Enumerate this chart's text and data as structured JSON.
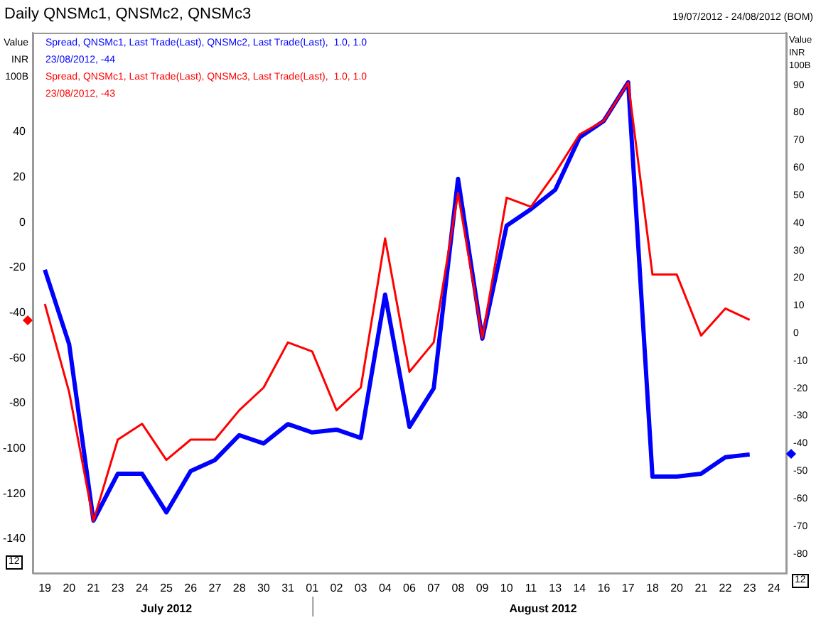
{
  "chart_data": {
    "type": "line",
    "title": "Daily QNSMc1, QNSMc2, QNSMc3",
    "subtitle": "19/07/2012 - 24/08/2012 (BOM)",
    "ylabel": "Value\nINR\n100B",
    "y2label": "Value\nINR\n100B",
    "categories": [
      "19",
      "20",
      "21",
      "23",
      "24",
      "25",
      "26",
      "27",
      "28",
      "30",
      "31",
      "01",
      "02",
      "03",
      "04",
      "06",
      "07",
      "08",
      "09",
      "10",
      "11",
      "13",
      "14",
      "16",
      "17",
      "18",
      "20",
      "21",
      "22",
      "23",
      "24"
    ],
    "series": [
      {
        "name": "Spread, QNSMc1, Last Trade(Last), QNSMc2, Last Trade(Last),  1.0, 1.0",
        "color": "#0000ff",
        "axis": "y2",
        "values": [
          23,
          -4,
          -68,
          -51,
          -51,
          -65,
          -50,
          -46,
          -37,
          -40,
          -33,
          -36,
          -35,
          -38,
          14,
          -34,
          -20,
          56,
          -2,
          39,
          45,
          52,
          71,
          77,
          91,
          -52,
          -52,
          -51,
          -45,
          -44,
          null
        ]
      },
      {
        "name": "Spread, QNSMc1, Last Trade(Last), QNSMc3, Last Trade(Last),  1.0, 1.0",
        "color": "#ff0000",
        "axis": "y",
        "values": [
          -36,
          -75,
          -132,
          -96,
          -89,
          -105,
          -96,
          -96,
          -83,
          -73,
          -53,
          -57,
          -83,
          -73,
          -7,
          -66,
          -53,
          13,
          -51,
          11,
          7,
          22,
          39,
          45,
          62,
          -23,
          -23,
          -50,
          -38,
          -43,
          null
        ]
      }
    ],
    "ylim": [
      -155,
      84
    ],
    "yticks": [
      -140,
      -120,
      -100,
      -80,
      -60,
      -40,
      -20,
      0,
      20,
      40
    ],
    "y2lim": [
      -87,
      109
    ],
    "y2ticks": [
      -80,
      -70,
      -60,
      -50,
      -40,
      -30,
      -20,
      -10,
      0,
      10,
      20,
      30,
      40,
      50,
      60,
      70,
      80,
      90
    ],
    "legend": "top left",
    "annotations": [
      "23/08/2012, -44",
      "23/08/2012, -43",
      "July 2012",
      "August 2012",
      "12",
      "12"
    ]
  }
}
